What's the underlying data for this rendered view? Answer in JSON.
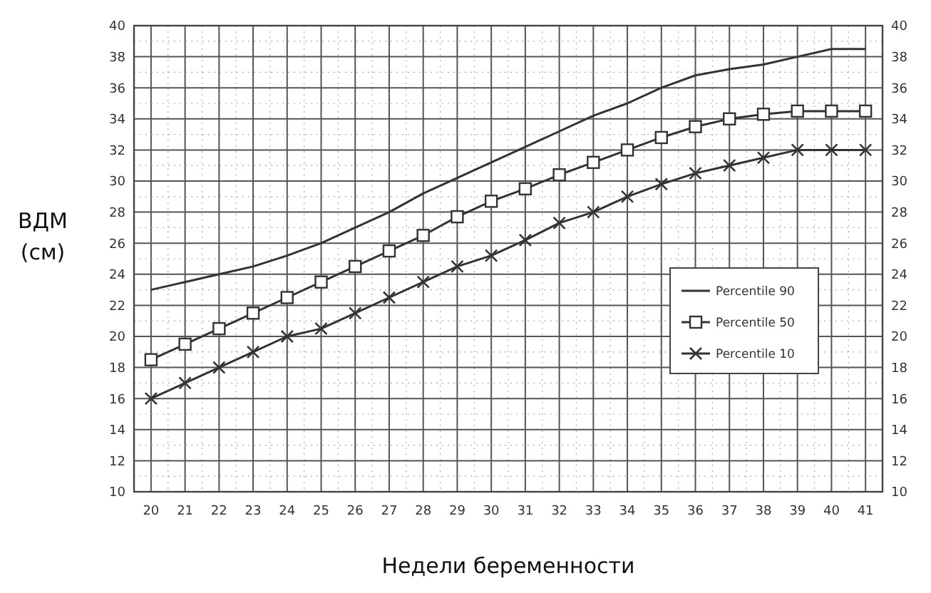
{
  "chart_data": {
    "type": "line",
    "xlabel": "Недели беременности",
    "ylabel": "ВДМ\n(см)",
    "categories": [
      "20",
      "21",
      "22",
      "23",
      "24",
      "25",
      "26",
      "27",
      "28",
      "29",
      "30",
      "31",
      "32",
      "33",
      "34",
      "35",
      "36",
      "37",
      "38",
      "39",
      "40",
      "41"
    ],
    "series": [
      {
        "name": "Percentile 90",
        "color": "#333333",
        "marker": "none",
        "values": [
          23,
          23.5,
          24,
          24.5,
          25.2,
          26,
          27,
          28,
          29.2,
          30.2,
          31.2,
          32.2,
          33.2,
          34.2,
          35,
          36,
          36.8,
          37.2,
          37.5,
          38,
          38.5,
          38.5
        ]
      },
      {
        "name": "Percentile 50",
        "color": "#333333",
        "marker": "square",
        "values": [
          18.5,
          19.5,
          20.5,
          21.5,
          22.5,
          23.5,
          24.5,
          25.5,
          26.5,
          27.7,
          28.7,
          29.5,
          30.4,
          31.2,
          32,
          32.8,
          33.5,
          34,
          34.3,
          34.5,
          34.5,
          34.5
        ]
      },
      {
        "name": "Percentile 10",
        "color": "#333333",
        "marker": "cross",
        "values": [
          16,
          17,
          18,
          19,
          20,
          20.5,
          21.5,
          22.5,
          23.5,
          24.5,
          25.2,
          26.2,
          27.3,
          28,
          29,
          29.8,
          30.5,
          31,
          31.5,
          32,
          32,
          32
        ]
      }
    ],
    "ylim": [
      10,
      40
    ],
    "yticks": [
      10,
      12,
      14,
      16,
      18,
      20,
      22,
      24,
      26,
      28,
      30,
      32,
      34,
      36,
      38,
      40
    ],
    "y2lim": [
      10,
      40
    ],
    "y2ticks": [
      10,
      12,
      14,
      16,
      18,
      20,
      22,
      24,
      26,
      28,
      30,
      32,
      34,
      36,
      38,
      40
    ],
    "grid": true,
    "legend": "right",
    "line_style": "solid"
  }
}
